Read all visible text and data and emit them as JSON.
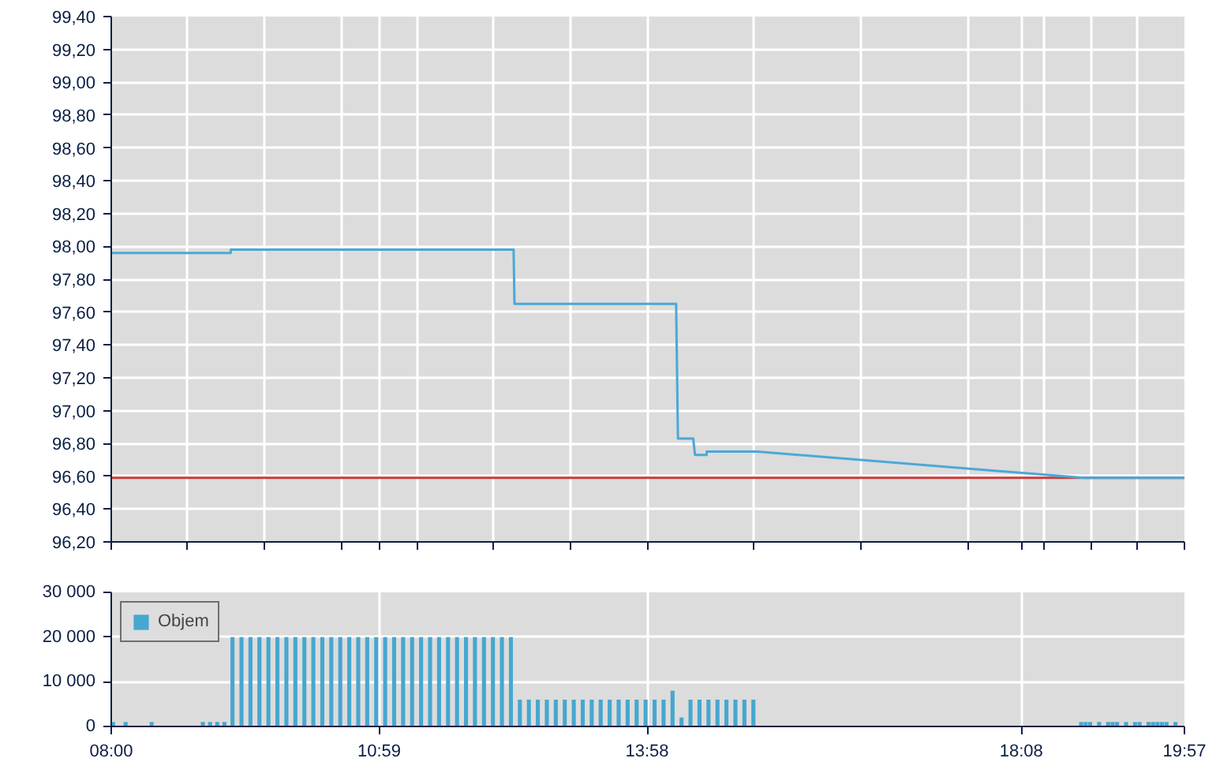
{
  "chart_data": [
    {
      "type": "line",
      "xlim": [
        8,
        19.95
      ],
      "xticks": [
        {
          "value": 8,
          "label": null
        },
        {
          "value": 8.85,
          "label": null
        },
        {
          "value": 9.7,
          "label": null
        },
        {
          "value": 10.56,
          "label": null
        },
        {
          "value": 10.9833,
          "label": null
        },
        {
          "value": 11.41,
          "label": null
        },
        {
          "value": 12.26,
          "label": null
        },
        {
          "value": 13.11,
          "label": null
        },
        {
          "value": 13.9667,
          "label": null
        },
        {
          "value": 15.16,
          "label": null
        },
        {
          "value": 16.35,
          "label": null
        },
        {
          "value": 17.54,
          "label": null
        },
        {
          "value": 18.1333,
          "label": null
        },
        {
          "value": 18.39,
          "label": null
        },
        {
          "value": 18.91,
          "label": null
        },
        {
          "value": 19.43,
          "label": null
        },
        {
          "value": 19.95,
          "label": null
        }
      ],
      "ylim": [
        96.2,
        99.4
      ],
      "yticks": [
        {
          "value": 96.2,
          "label": "96,20"
        },
        {
          "value": 96.4,
          "label": "96,40"
        },
        {
          "value": 96.6,
          "label": "96,60"
        },
        {
          "value": 96.8,
          "label": "96,80"
        },
        {
          "value": 97.0,
          "label": "97,00"
        },
        {
          "value": 97.2,
          "label": "97,20"
        },
        {
          "value": 97.4,
          "label": "97,40"
        },
        {
          "value": 97.6,
          "label": "97,60"
        },
        {
          "value": 97.8,
          "label": "97,80"
        },
        {
          "value": 98.0,
          "label": "98,00"
        },
        {
          "value": 98.2,
          "label": "98,20"
        },
        {
          "value": 98.4,
          "label": "98,40"
        },
        {
          "value": 98.6,
          "label": "98,60"
        },
        {
          "value": 98.8,
          "label": "98,80"
        },
        {
          "value": 99.0,
          "label": "99,00"
        },
        {
          "value": 99.2,
          "label": "99,20"
        },
        {
          "value": 99.4,
          "label": "99,40"
        }
      ],
      "tick_labels": "y",
      "grid": true,
      "series": [
        {
          "color": "#4aa8d8",
          "x": [
            8,
            9.33,
            9.33,
            12.48,
            12.49,
            14.29,
            14.31,
            14.48,
            14.5,
            14.63,
            14.63,
            15.19,
            18.83,
            19.95
          ],
          "values": [
            97.96,
            97.96,
            97.98,
            97.98,
            97.65,
            97.65,
            96.83,
            96.83,
            96.73,
            96.73,
            96.75,
            96.75,
            96.59,
            96.59
          ]
        }
      ],
      "ref_lines": [
        {
          "axis": "y",
          "value": 96.59,
          "label": null,
          "color": "#c83c3c"
        }
      ]
    },
    {
      "type": "bar",
      "xlim": [
        8,
        19.95
      ],
      "xticks": [
        {
          "value": 8,
          "label": "08:00"
        },
        {
          "value": 10.9833,
          "label": "10:59"
        },
        {
          "value": 13.9667,
          "label": "13:58"
        },
        {
          "value": 18.1333,
          "label": "18:08"
        },
        {
          "value": 19.95,
          "label": "19:57"
        }
      ],
      "ylim": [
        0,
        30000
      ],
      "yticks": [
        0,
        {
          "value": 10000,
          "label": "10 000"
        },
        {
          "value": 20000,
          "label": "20 000"
        },
        {
          "value": 30000,
          "label": "30 000"
        }
      ],
      "grid": true,
      "legend": "top left",
      "series": [
        {
          "name": "Objem",
          "color": "#46a7d0",
          "x": [
            8.02,
            8.16,
            8.45,
            9.02,
            9.1,
            9.18,
            9.26,
            9.35,
            9.45,
            9.55,
            9.65,
            9.75,
            9.85,
            9.95,
            10.05,
            10.15,
            10.25,
            10.35,
            10.45,
            10.55,
            10.65,
            10.75,
            10.85,
            10.95,
            11.05,
            11.15,
            11.25,
            11.35,
            11.45,
            11.55,
            11.65,
            11.75,
            11.85,
            11.95,
            12.05,
            12.15,
            12.25,
            12.35,
            12.45,
            12.55,
            12.65,
            12.75,
            12.85,
            12.95,
            13.05,
            13.15,
            13.25,
            13.35,
            13.45,
            13.55,
            13.65,
            13.75,
            13.85,
            13.95,
            14.05,
            14.15,
            14.25,
            14.35,
            14.45,
            14.55,
            14.65,
            14.75,
            14.85,
            14.95,
            15.05,
            15.15,
            18.8,
            18.85,
            18.9,
            19.0,
            19.1,
            19.15,
            19.2,
            19.3,
            19.4,
            19.45,
            19.55,
            19.6,
            19.65,
            19.7,
            19.75,
            19.85
          ],
          "values": [
            1000,
            1000,
            1000,
            1000,
            1000,
            1000,
            1000,
            20000,
            20000,
            20000,
            20000,
            20000,
            20000,
            20000,
            20000,
            20000,
            20000,
            20000,
            20000,
            20000,
            20000,
            20000,
            20000,
            20000,
            20000,
            20000,
            20000,
            20000,
            20000,
            20000,
            20000,
            20000,
            20000,
            20000,
            20000,
            20000,
            20000,
            20000,
            20000,
            6000,
            6000,
            6000,
            6000,
            6000,
            6000,
            6000,
            6000,
            6000,
            6000,
            6000,
            6000,
            6000,
            6000,
            6000,
            6000,
            6000,
            8000,
            2000,
            6000,
            6000,
            6000,
            6000,
            6000,
            6000,
            6000,
            6000,
            1000,
            1000,
            1000,
            1000,
            1000,
            1000,
            1000,
            1000,
            1000,
            1000,
            1000,
            1000,
            1000,
            1000,
            1000,
            1000
          ]
        }
      ]
    }
  ]
}
